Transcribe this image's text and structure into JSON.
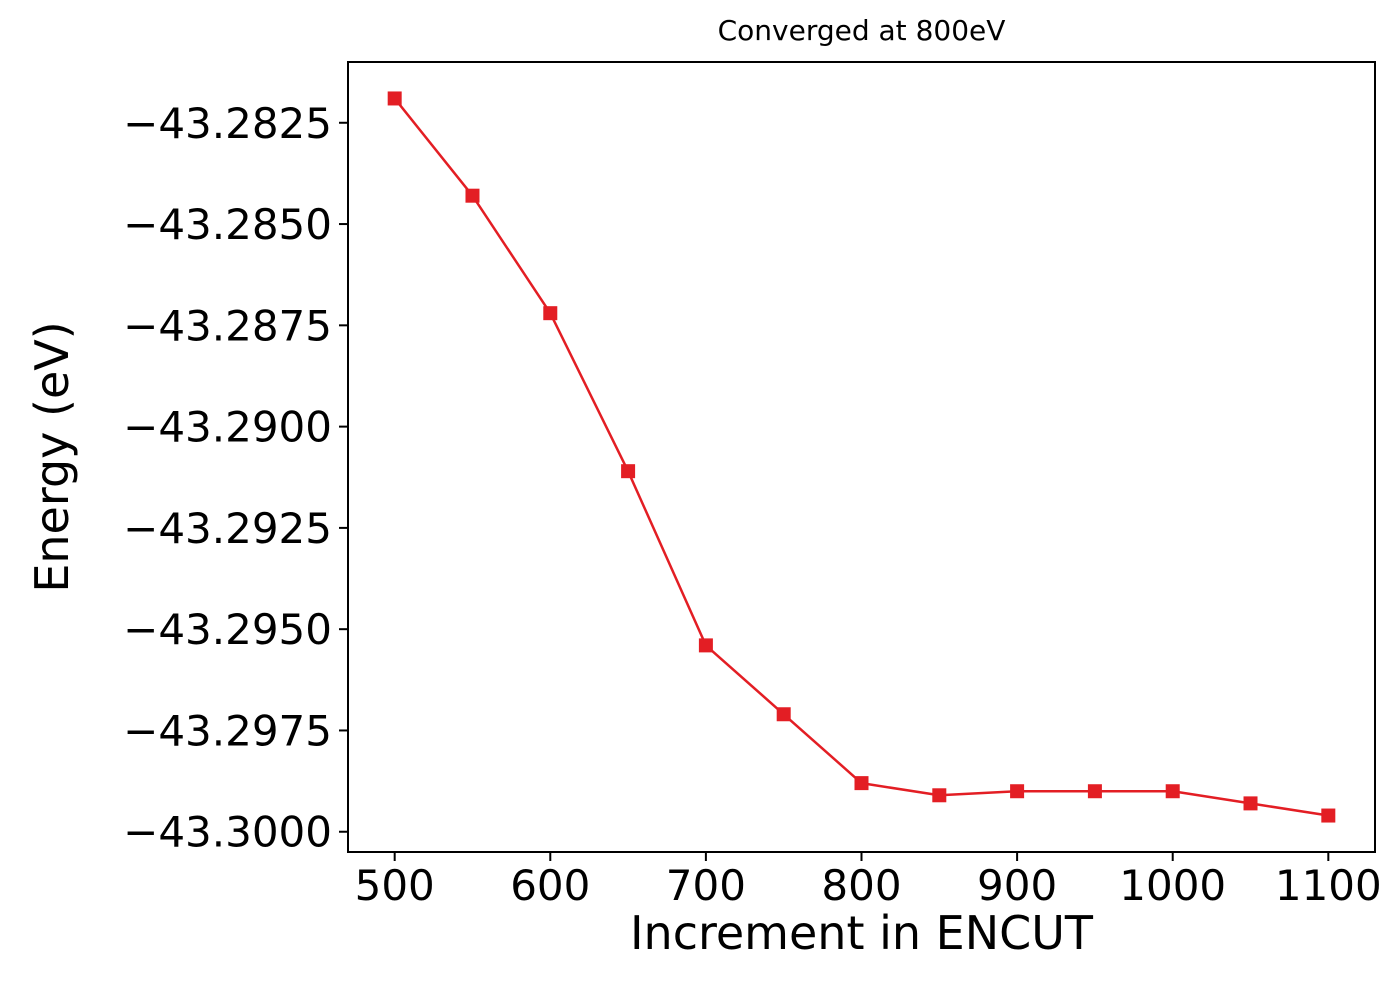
{
  "chart_data": {
    "type": "line",
    "title": "Converged at 800eV",
    "xlabel": "Increment in ENCUT",
    "ylabel": "Energy (eV)",
    "x": [
      500,
      550,
      600,
      650,
      700,
      750,
      800,
      850,
      900,
      950,
      1000,
      1050,
      1100
    ],
    "y": [
      -43.2819,
      -43.2843,
      -43.2872,
      -43.2911,
      -43.2954,
      -43.2971,
      -43.2988,
      -43.2991,
      -43.299,
      -43.299,
      -43.299,
      -43.2993,
      -43.2996
    ],
    "series_color": "#e31e24",
    "marker": "square",
    "line_width": 2.5,
    "marker_size": 14,
    "xlim": [
      470,
      1130
    ],
    "ylim": [
      -43.3005,
      -43.281
    ],
    "xticks": {
      "values": [
        500,
        600,
        700,
        800,
        900,
        1000,
        1100
      ],
      "labels": [
        "500",
        "600",
        "700",
        "800",
        "900",
        "1000",
        "1100"
      ]
    },
    "yticks": {
      "values": [
        -43.2825,
        -43.285,
        -43.2875,
        -43.29,
        -43.2925,
        -43.295,
        -43.2975,
        -43.3
      ],
      "labels": [
        "−43.2825",
        "−43.2850",
        "−43.2875",
        "−43.2900",
        "−43.2925",
        "−43.2950",
        "−43.2975",
        "−43.3000"
      ]
    },
    "grid": false,
    "legend": null,
    "axis_color": "#000000",
    "background": "#ffffff"
  }
}
